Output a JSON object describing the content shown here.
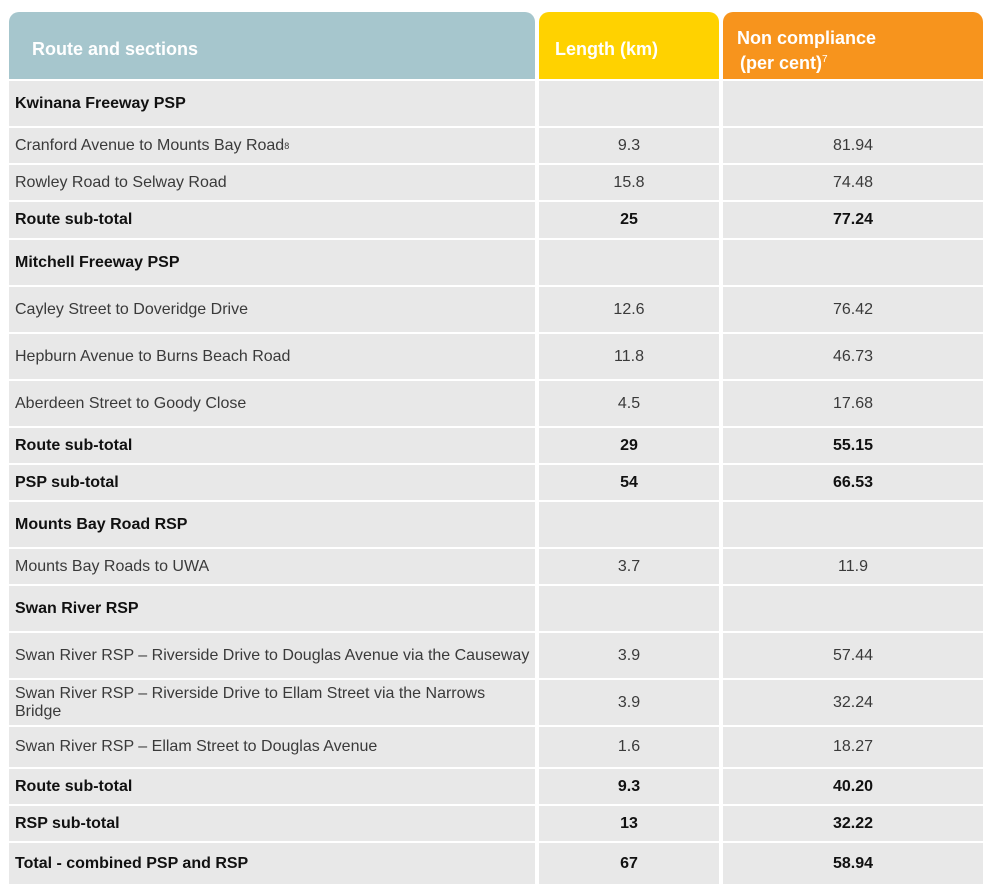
{
  "header": {
    "route_label": "Route and sections",
    "length_label": "Length (km)",
    "noncompliance_line1": "Non compliance",
    "noncompliance_line2": "(per cent)",
    "noncompliance_footnote": "7"
  },
  "rows": [
    {
      "route": "Kwinana Freeway PSP",
      "length": "",
      "noncompliance": ""
    },
    {
      "route": "Cranford Avenue to Mounts Bay Road",
      "footnote": "8",
      "length": "9.3",
      "noncompliance": "81.94"
    },
    {
      "route": "Rowley Road to Selway Road",
      "length": "15.8",
      "noncompliance": "74.48"
    },
    {
      "route": "Route sub-total",
      "length": "25",
      "noncompliance": "77.24"
    },
    {
      "route": "Mitchell Freeway PSP",
      "length": "",
      "noncompliance": ""
    },
    {
      "route": "Cayley Street to Doveridge Drive",
      "length": "12.6",
      "noncompliance": "76.42"
    },
    {
      "route": "Hepburn Avenue to Burns Beach Road",
      "length": "11.8",
      "noncompliance": "46.73"
    },
    {
      "route": "Aberdeen Street to Goody Close",
      "length": "4.5",
      "noncompliance": "17.68"
    },
    {
      "route": "Route sub-total",
      "length": "29",
      "noncompliance": "55.15"
    },
    {
      "route": "PSP sub-total",
      "length": "54",
      "noncompliance": "66.53"
    },
    {
      "route": "Mounts Bay Road RSP",
      "length": "",
      "noncompliance": ""
    },
    {
      "route": "Mounts Bay Roads to UWA",
      "length": "3.7",
      "noncompliance": "11.9"
    },
    {
      "route": "Swan River RSP",
      "length": "",
      "noncompliance": ""
    },
    {
      "route": "Swan River RSP – Riverside Drive to Douglas Avenue via the Causeway",
      "length": "3.9",
      "noncompliance": "57.44"
    },
    {
      "route": "Swan River RSP – Riverside Drive to Ellam Street via the Narrows Bridge",
      "length": "3.9",
      "noncompliance": "32.24"
    },
    {
      "route": "Swan River RSP – Ellam Street to Douglas Avenue",
      "length": "1.6",
      "noncompliance": "18.27"
    },
    {
      "route": "Route sub-total",
      "length": "9.3",
      "noncompliance": "40.20"
    },
    {
      "route": "RSP sub-total",
      "length": "13",
      "noncompliance": "32.22"
    },
    {
      "route": "Total - combined PSP and RSP",
      "length": "67",
      "noncompliance": "58.94"
    }
  ]
}
